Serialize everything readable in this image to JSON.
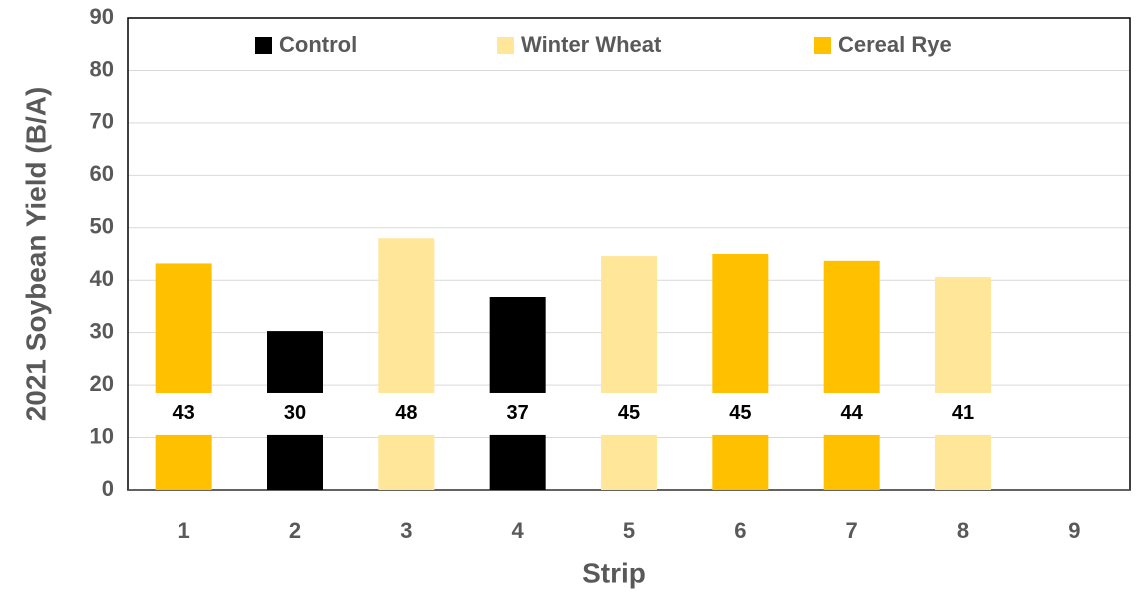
{
  "chart_data": {
    "type": "bar",
    "x_label": "Strip",
    "y_label": "2021 Soybean Yield (B/A)",
    "categories": [
      "1",
      "2",
      "3",
      "4",
      "5",
      "6",
      "7",
      "8",
      "9"
    ],
    "series": [
      {
        "name": "Control",
        "color": "#000000",
        "values": [
          null,
          30.3,
          null,
          36.8,
          null,
          null,
          null,
          null,
          null
        ],
        "value_labels": [
          null,
          "30",
          null,
          "37",
          null,
          null,
          null,
          null,
          null
        ]
      },
      {
        "name": "Winter Wheat",
        "color": "#ffe699",
        "values": [
          null,
          null,
          48,
          null,
          44.6,
          null,
          null,
          40.6,
          null
        ],
        "value_labels": [
          null,
          null,
          "48",
          null,
          "45",
          null,
          null,
          "41",
          null
        ]
      },
      {
        "name": "Cereal Rye",
        "color": "#ffc000",
        "values": [
          43.2,
          null,
          null,
          null,
          null,
          45,
          43.7,
          null,
          null
        ],
        "value_labels": [
          "43",
          null,
          null,
          null,
          null,
          "45",
          "44",
          null,
          null
        ]
      }
    ],
    "ylim": [
      0,
      90
    ],
    "yticks": [
      0,
      10,
      20,
      30,
      40,
      50,
      60,
      70,
      80,
      90
    ],
    "grid": true,
    "legend": "top"
  }
}
